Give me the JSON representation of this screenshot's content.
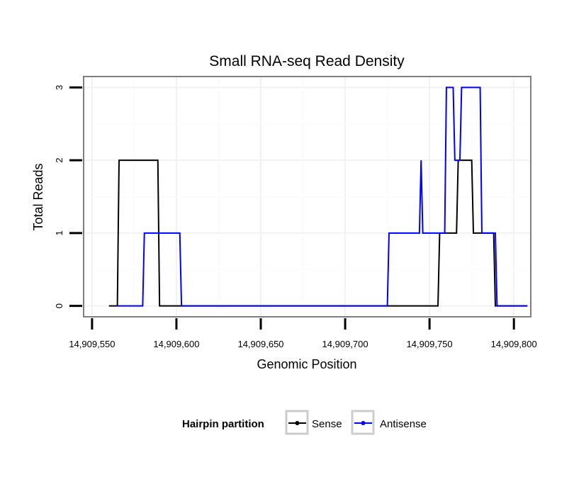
{
  "chart_data": {
    "type": "line",
    "title": "Small RNA-seq Read Density",
    "xlabel": "Genomic Position",
    "ylabel": "Total Reads",
    "xlim": [
      14909545,
      14909810
    ],
    "ylim": [
      -0.15,
      3.15
    ],
    "x_ticks": [
      14909550,
      14909600,
      14909650,
      14909700,
      14909750,
      14909800
    ],
    "x_tick_labels": [
      "14,909,550",
      "14,909,600",
      "14,909,650",
      "14,909,700",
      "14,909,750",
      "14,909,800"
    ],
    "y_ticks": [
      0,
      1,
      2,
      3
    ],
    "y_tick_labels": [
      "0",
      "1",
      "2",
      "3"
    ],
    "grid": true,
    "legend": {
      "title": "Hairpin partition",
      "position": "bottom",
      "entries": [
        "Sense",
        "Antisense"
      ]
    },
    "series": [
      {
        "name": "Sense",
        "color": "#000000",
        "points": [
          [
            14909560,
            0
          ],
          [
            14909565,
            0
          ],
          [
            14909566,
            2
          ],
          [
            14909589,
            2
          ],
          [
            14909590,
            0
          ],
          [
            14909755,
            0
          ],
          [
            14909756,
            1
          ],
          [
            14909766,
            1
          ],
          [
            14909767,
            2
          ],
          [
            14909775,
            2
          ],
          [
            14909776,
            1
          ],
          [
            14909788,
            1
          ],
          [
            14909789,
            0
          ],
          [
            14909808,
            0
          ]
        ]
      },
      {
        "name": "Antisense",
        "color": "#0000ff",
        "points": [
          [
            14909565,
            0
          ],
          [
            14909580,
            0
          ],
          [
            14909581,
            1
          ],
          [
            14909602,
            1
          ],
          [
            14909603,
            0
          ],
          [
            14909725,
            0
          ],
          [
            14909726,
            1
          ],
          [
            14909744,
            1
          ],
          [
            14909745,
            2
          ],
          [
            14909746,
            1
          ],
          [
            14909759,
            1
          ],
          [
            14909760,
            3
          ],
          [
            14909764,
            3
          ],
          [
            14909765,
            2
          ],
          [
            14909768,
            2
          ],
          [
            14909769,
            3
          ],
          [
            14909780,
            3
          ],
          [
            14909781,
            1
          ],
          [
            14909789,
            1
          ],
          [
            14909790,
            0
          ],
          [
            14909808,
            0
          ]
        ]
      }
    ]
  }
}
